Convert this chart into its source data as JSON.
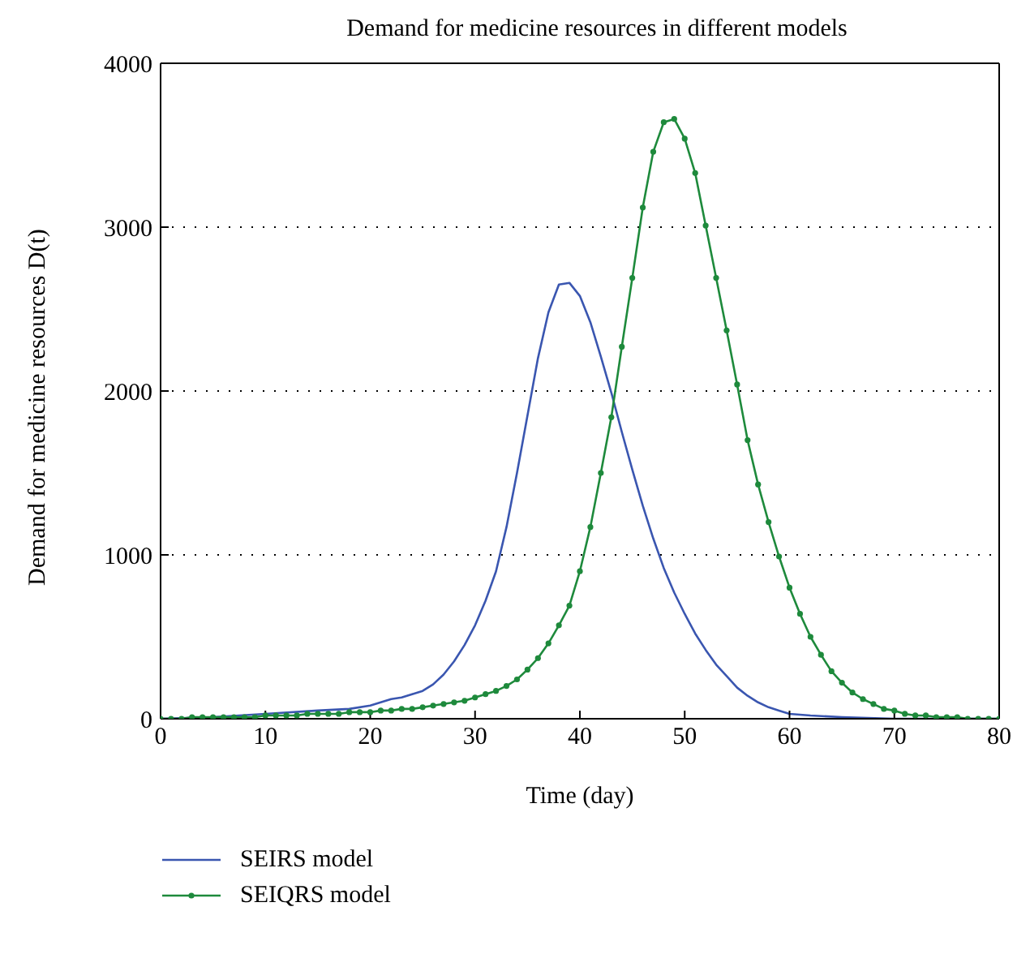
{
  "chart_data": {
    "type": "line",
    "title": "Demand for medicine resources in different models",
    "xlabel": "Time (day)",
    "ylabel": "Demand for medicine resources D(t)",
    "xlim": [
      0,
      80
    ],
    "xticks": [
      0,
      10,
      20,
      30,
      40,
      50,
      60,
      70,
      80
    ],
    "ylim": [
      0,
      4000
    ],
    "yticks": [
      0,
      1000,
      2000,
      3000,
      4000
    ],
    "grid": "y",
    "legend": "bottom",
    "series": [
      {
        "name": "SEIRS model",
        "color": "#3a56b0",
        "marker": "none",
        "x": [
          0,
          5,
          10,
          15,
          18,
          20,
          21,
          22,
          23,
          24,
          25,
          26,
          27,
          28,
          29,
          30,
          31,
          32,
          33,
          34,
          35,
          36,
          37,
          38,
          39,
          40,
          41,
          42,
          43,
          44,
          45,
          46,
          47,
          48,
          49,
          50,
          51,
          52,
          53,
          54,
          55,
          56,
          57,
          58,
          59,
          60,
          62,
          65,
          70,
          75,
          80
        ],
        "values": [
          0,
          10,
          30,
          50,
          60,
          80,
          100,
          120,
          130,
          150,
          170,
          210,
          270,
          350,
          450,
          570,
          720,
          900,
          1170,
          1500,
          1850,
          2200,
          2480,
          2650,
          2660,
          2580,
          2420,
          2210,
          1990,
          1750,
          1520,
          1300,
          1100,
          920,
          770,
          640,
          520,
          420,
          330,
          260,
          190,
          140,
          100,
          70,
          50,
          30,
          20,
          10,
          0,
          0,
          0
        ]
      },
      {
        "name": "SEIQRS model",
        "color": "#1e8a3c",
        "marker": "circle",
        "x": [
          0,
          1,
          2,
          3,
          4,
          5,
          6,
          7,
          8,
          9,
          10,
          11,
          12,
          13,
          14,
          15,
          16,
          17,
          18,
          19,
          20,
          21,
          22,
          23,
          24,
          25,
          26,
          27,
          28,
          29,
          30,
          31,
          32,
          33,
          34,
          35,
          36,
          37,
          38,
          39,
          40,
          41,
          42,
          43,
          44,
          45,
          46,
          47,
          48,
          49,
          50,
          51,
          52,
          53,
          54,
          55,
          56,
          57,
          58,
          59,
          60,
          61,
          62,
          63,
          64,
          65,
          66,
          67,
          68,
          69,
          70,
          71,
          72,
          73,
          74,
          75,
          76,
          77,
          78,
          79,
          80
        ],
        "values": [
          0,
          0,
          0,
          10,
          10,
          10,
          10,
          10,
          10,
          10,
          20,
          20,
          20,
          20,
          30,
          30,
          30,
          30,
          40,
          40,
          40,
          50,
          50,
          60,
          60,
          70,
          80,
          90,
          100,
          110,
          130,
          150,
          170,
          200,
          240,
          300,
          370,
          460,
          570,
          690,
          900,
          1170,
          1500,
          1840,
          2270,
          2690,
          3120,
          3460,
          3640,
          3660,
          3540,
          3330,
          3010,
          2690,
          2370,
          2040,
          1700,
          1430,
          1200,
          990,
          800,
          640,
          500,
          390,
          290,
          220,
          160,
          120,
          90,
          60,
          50,
          30,
          20,
          20,
          10,
          10,
          10,
          0,
          0,
          0,
          0
        ]
      }
    ]
  }
}
